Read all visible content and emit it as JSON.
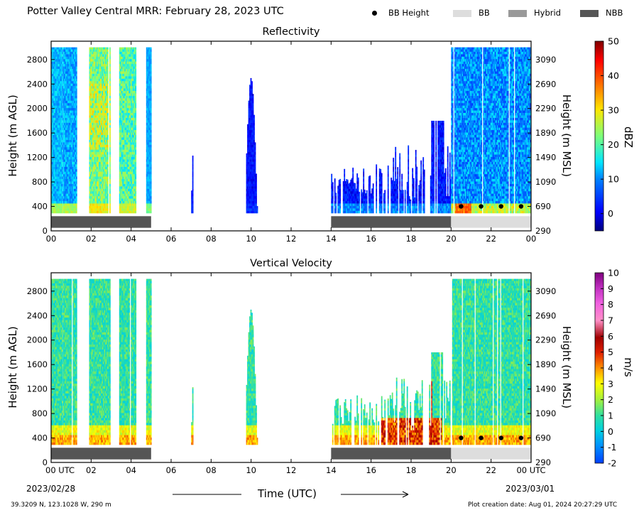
{
  "title": "Potter Valley Central MRR:  February 28, 2023 UTC",
  "legend": [
    {
      "label": "BB Height",
      "color": "#000000",
      "marker": "dot"
    },
    {
      "label": "BB",
      "color": "#dddddd",
      "marker": "rect"
    },
    {
      "label": "Hybrid",
      "color": "#999999",
      "marker": "rect"
    },
    {
      "label": "NBB",
      "color": "#555555",
      "marker": "rect"
    }
  ],
  "x_axis": {
    "label": "Time (UTC)",
    "ticks": [
      "00",
      "02",
      "04",
      "06",
      "08",
      "10",
      "12",
      "14",
      "16",
      "18",
      "20",
      "22",
      "00"
    ],
    "first_tick_label": "00 UTC",
    "last_tick_label": "00 UTC",
    "start_date": "2023/02/28",
    "end_date": "2023/03/01"
  },
  "y_left": {
    "label": "Height (m AGL)",
    "ticks": [
      "0",
      "400",
      "800",
      "1200",
      "1600",
      "2000",
      "2400",
      "2800"
    ]
  },
  "y_right": {
    "label": "Height (m MSL)",
    "ticks": [
      "290",
      "690",
      "1090",
      "1490",
      "1890",
      "2290",
      "2690",
      "3090"
    ]
  },
  "panels": [
    {
      "title": "Reflectivity",
      "colorbar": {
        "label": "dBZ",
        "ticks": [
          "50",
          "40",
          "30",
          "20",
          "10",
          "0"
        ],
        "min": -5,
        "max": 50
      }
    },
    {
      "title": "Vertical Velocity",
      "colorbar": {
        "label": "m/s",
        "ticks": [
          "10",
          "9",
          "8",
          "7",
          "6",
          "5",
          "4",
          "3",
          "2",
          "1",
          "0",
          "-1",
          "-2"
        ],
        "min": -2,
        "max": 10
      }
    }
  ],
  "footer": {
    "location": "39.3209 N, 123.1028 W, 290 m",
    "creation": "Plot creation date: Aug 01, 2024 20:27:29 UTC"
  },
  "colors": {
    "nbb": "#555555",
    "bb": "#dddddd",
    "hybrid": "#999999"
  },
  "chart_data": [
    {
      "type": "heatmap",
      "title": "Reflectivity",
      "xlabel": "",
      "ylabel": "Height (m AGL)",
      "y2label": "Height (m MSL)",
      "xlim": [
        0,
        24
      ],
      "ylim": [
        0,
        3100
      ],
      "value_range": [
        -5,
        50
      ],
      "units": "dBZ",
      "echo_periods_hours": [
        [
          0.0,
          0.55
        ],
        [
          0.6,
          1.25
        ],
        [
          1.9,
          2.95
        ],
        [
          3.4,
          4.2
        ],
        [
          4.75,
          5.0
        ],
        [
          7.0,
          7.1
        ],
        [
          9.75,
          10.3
        ],
        [
          12.7,
          12.75
        ],
        [
          14.0,
          20.0
        ],
        [
          20.0,
          24.0
        ]
      ],
      "bb_height_points": [
        {
          "time_h": 20.5,
          "height_m": 400
        },
        {
          "time_h": 21.5,
          "height_m": 400
        },
        {
          "time_h": 22.5,
          "height_m": 400
        },
        {
          "time_h": 23.5,
          "height_m": 400
        }
      ],
      "precip_type_bar": [
        {
          "start_h": 0,
          "end_h": 5,
          "type": "NBB"
        },
        {
          "start_h": 14,
          "end_h": 20,
          "type": "NBB"
        },
        {
          "start_h": 20,
          "end_h": 24,
          "type": "BB"
        }
      ]
    },
    {
      "type": "heatmap",
      "title": "Vertical Velocity",
      "xlabel": "Time (UTC)",
      "ylabel": "Height (m AGL)",
      "y2label": "Height (m MSL)",
      "xlim": [
        0,
        24
      ],
      "ylim": [
        0,
        3100
      ],
      "value_range": [
        -2,
        10
      ],
      "units": "m/s",
      "echo_periods_hours": [
        [
          0.0,
          0.55
        ],
        [
          0.6,
          1.25
        ],
        [
          1.9,
          2.95
        ],
        [
          3.4,
          4.2
        ],
        [
          4.75,
          5.0
        ],
        [
          7.0,
          7.1
        ],
        [
          9.75,
          10.3
        ],
        [
          12.7,
          12.75
        ],
        [
          14.0,
          20.0
        ],
        [
          20.0,
          24.0
        ]
      ],
      "bb_height_points": [
        {
          "time_h": 20.5,
          "height_m": 400
        },
        {
          "time_h": 21.5,
          "height_m": 400
        },
        {
          "time_h": 22.5,
          "height_m": 400
        },
        {
          "time_h": 23.5,
          "height_m": 400
        }
      ],
      "precip_type_bar": [
        {
          "start_h": 0,
          "end_h": 5,
          "type": "NBB"
        },
        {
          "start_h": 14,
          "end_h": 20,
          "type": "NBB"
        },
        {
          "start_h": 20,
          "end_h": 24,
          "type": "BB"
        }
      ]
    }
  ]
}
